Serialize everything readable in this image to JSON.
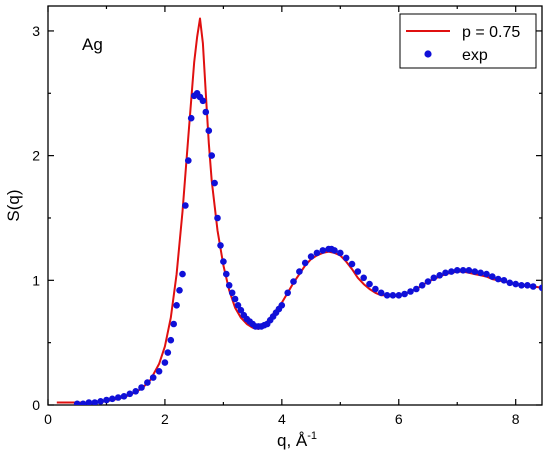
{
  "chart_data": {
    "type": "line",
    "annotation": "Ag",
    "xlabel": "q, Å",
    "xlabel_sup": "-1",
    "ylabel": "S(q)",
    "xlim": [
      0,
      8.45
    ],
    "ylim": [
      0,
      3.2
    ],
    "xticks": [
      0,
      2,
      4,
      6,
      8
    ],
    "yticks": [
      0,
      1,
      2,
      3
    ],
    "legend_position": "top-right",
    "colors": {
      "model": "#e01010",
      "exp": "#1010d8",
      "axis": "#000000"
    },
    "series": [
      {
        "name": "p = 0.75",
        "style": "line",
        "x": [
          0.15,
          0.5,
          0.8,
          1.0,
          1.2,
          1.4,
          1.6,
          1.75,
          1.9,
          2.0,
          2.1,
          2.2,
          2.3,
          2.4,
          2.5,
          2.55,
          2.6,
          2.65,
          2.7,
          2.75,
          2.8,
          2.85,
          2.9,
          3.0,
          3.1,
          3.2,
          3.3,
          3.4,
          3.5,
          3.6,
          3.7,
          3.8,
          3.9,
          4.0,
          4.1,
          4.2,
          4.3,
          4.4,
          4.5,
          4.6,
          4.7,
          4.8,
          4.9,
          5.0,
          5.1,
          5.2,
          5.3,
          5.4,
          5.5,
          5.6,
          5.7,
          5.8,
          5.9,
          6.0,
          6.1,
          6.2,
          6.3,
          6.4,
          6.5,
          6.6,
          6.7,
          6.8,
          6.9,
          7.0,
          7.1,
          7.2,
          7.3,
          7.4,
          7.5,
          7.6,
          7.7,
          7.8,
          7.9,
          8.0,
          8.1,
          8.2,
          8.3,
          8.45
        ],
        "y": [
          0.02,
          0.02,
          0.02,
          0.03,
          0.05,
          0.08,
          0.13,
          0.2,
          0.33,
          0.47,
          0.7,
          1.05,
          1.55,
          2.15,
          2.75,
          2.95,
          3.1,
          2.9,
          2.5,
          2.1,
          1.8,
          1.6,
          1.4,
          1.12,
          0.92,
          0.78,
          0.7,
          0.65,
          0.62,
          0.61,
          0.64,
          0.7,
          0.76,
          0.82,
          0.9,
          0.98,
          1.05,
          1.12,
          1.17,
          1.2,
          1.22,
          1.23,
          1.22,
          1.2,
          1.15,
          1.09,
          1.02,
          0.97,
          0.93,
          0.9,
          0.88,
          0.88,
          0.87,
          0.88,
          0.89,
          0.91,
          0.93,
          0.96,
          0.99,
          1.01,
          1.03,
          1.05,
          1.06,
          1.07,
          1.07,
          1.06,
          1.05,
          1.04,
          1.03,
          1.01,
          1.0,
          0.99,
          0.98,
          0.97,
          0.96,
          0.95,
          0.95,
          0.94
        ]
      },
      {
        "name": "exp",
        "style": "markers",
        "x": [
          0.5,
          0.6,
          0.7,
          0.8,
          0.9,
          1.0,
          1.1,
          1.2,
          1.3,
          1.4,
          1.5,
          1.6,
          1.7,
          1.8,
          1.9,
          2.0,
          2.05,
          2.1,
          2.15,
          2.2,
          2.25,
          2.3,
          2.35,
          2.4,
          2.45,
          2.5,
          2.55,
          2.6,
          2.65,
          2.7,
          2.75,
          2.8,
          2.85,
          2.9,
          2.95,
          3.0,
          3.05,
          3.1,
          3.15,
          3.2,
          3.25,
          3.3,
          3.35,
          3.4,
          3.45,
          3.5,
          3.55,
          3.6,
          3.65,
          3.7,
          3.75,
          3.8,
          3.85,
          3.9,
          3.95,
          4.0,
          4.1,
          4.2,
          4.3,
          4.4,
          4.5,
          4.6,
          4.7,
          4.8,
          4.85,
          4.9,
          5.0,
          5.1,
          5.2,
          5.3,
          5.4,
          5.5,
          5.6,
          5.7,
          5.8,
          5.9,
          6.0,
          6.1,
          6.2,
          6.3,
          6.4,
          6.5,
          6.6,
          6.7,
          6.8,
          6.9,
          7.0,
          7.1,
          7.2,
          7.3,
          7.4,
          7.5,
          7.6,
          7.7,
          7.8,
          7.9,
          8.0,
          8.1,
          8.2,
          8.3,
          8.45
        ],
        "y": [
          0.01,
          0.01,
          0.02,
          0.02,
          0.03,
          0.04,
          0.05,
          0.06,
          0.07,
          0.09,
          0.11,
          0.14,
          0.18,
          0.22,
          0.27,
          0.34,
          0.42,
          0.52,
          0.65,
          0.8,
          0.92,
          1.05,
          1.6,
          1.96,
          2.3,
          2.48,
          2.5,
          2.47,
          2.44,
          2.35,
          2.2,
          2.0,
          1.78,
          1.5,
          1.28,
          1.15,
          1.05,
          0.96,
          0.9,
          0.85,
          0.8,
          0.76,
          0.72,
          0.69,
          0.67,
          0.65,
          0.63,
          0.63,
          0.63,
          0.64,
          0.65,
          0.68,
          0.71,
          0.74,
          0.77,
          0.8,
          0.9,
          0.99,
          1.07,
          1.14,
          1.19,
          1.22,
          1.24,
          1.25,
          1.25,
          1.24,
          1.22,
          1.18,
          1.13,
          1.07,
          1.02,
          0.97,
          0.93,
          0.9,
          0.88,
          0.88,
          0.88,
          0.89,
          0.91,
          0.93,
          0.96,
          0.99,
          1.02,
          1.04,
          1.06,
          1.07,
          1.08,
          1.08,
          1.08,
          1.07,
          1.06,
          1.05,
          1.03,
          1.01,
          1.0,
          0.98,
          0.97,
          0.96,
          0.96,
          0.95,
          0.94
        ]
      }
    ]
  }
}
